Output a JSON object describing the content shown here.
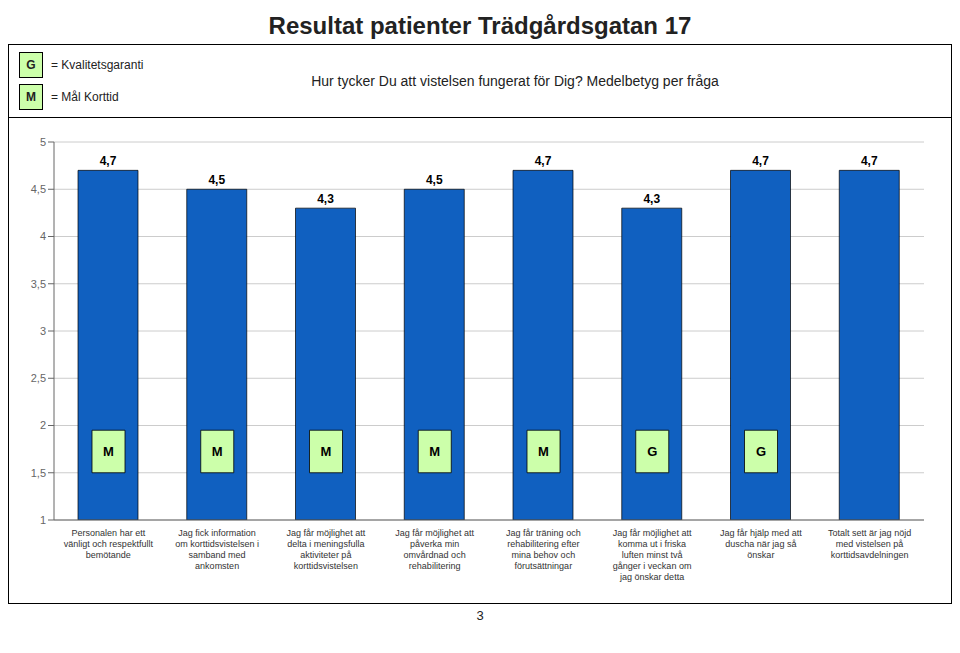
{
  "chart_data": {
    "type": "bar",
    "title": "Resultat patienter Trädgårdsgatan 17",
    "subtitle": "Hur tycker Du att vistelsen fungerat för Dig? Medelbetyg per fråga",
    "categories": [
      "Personalen har ett\nvänligt och respektfullt\nbemötande",
      "Jag fick information\nom korttidsvistelsen i\nsamband med\nankomsten",
      "Jag får möjlighet att\ndelta i meningsfulla\naktiviteter på\nkorttidsvistelsen",
      "Jag får möjlighet att\npåverka min\nomvårdnad och\nrehabilitering",
      "Jag får träning och\nrehabilitering efter\nmina behov och\nförutsättningar",
      "Jag får möjlighet att\nkomma ut i friska\nluften minst två\ngånger i veckan om\njag önskar detta",
      "Jag får hjälp med att\nduscha när jag så\nönskar",
      "Totalt sett är jag nöjd\nmed vistelsen på\nkorttidsavdelningen"
    ],
    "values": [
      4.7,
      4.5,
      4.3,
      4.5,
      4.7,
      4.3,
      4.7,
      4.7
    ],
    "value_labels": [
      "4,7",
      "4,5",
      "4,3",
      "4,5",
      "4,7",
      "4,3",
      "4,7",
      "4,7"
    ],
    "data_labels": true,
    "color": "#1060c0",
    "ylim": [
      1,
      5
    ],
    "yticks": [
      1,
      {
        "value": 1.5,
        "label": "1,5"
      },
      2,
      {
        "value": 2.5,
        "label": "2,5"
      },
      3,
      {
        "value": 3.5,
        "label": "3,5"
      },
      4,
      {
        "value": 4.5,
        "label": "4,5"
      },
      5
    ],
    "grid": true,
    "bar_labels": [
      "M",
      "M",
      "M",
      "M",
      "M",
      "G",
      "G",
      null
    ],
    "marker_color": "#ccffaa",
    "marker_bottom": 1.5,
    "marker_height": 0.45,
    "marker_legend": [
      {
        "label": "G",
        "text": "= Kvalitetsgaranti"
      },
      {
        "label": "M",
        "text": "= Mål Korttid"
      }
    ],
    "page_number": "3"
  }
}
